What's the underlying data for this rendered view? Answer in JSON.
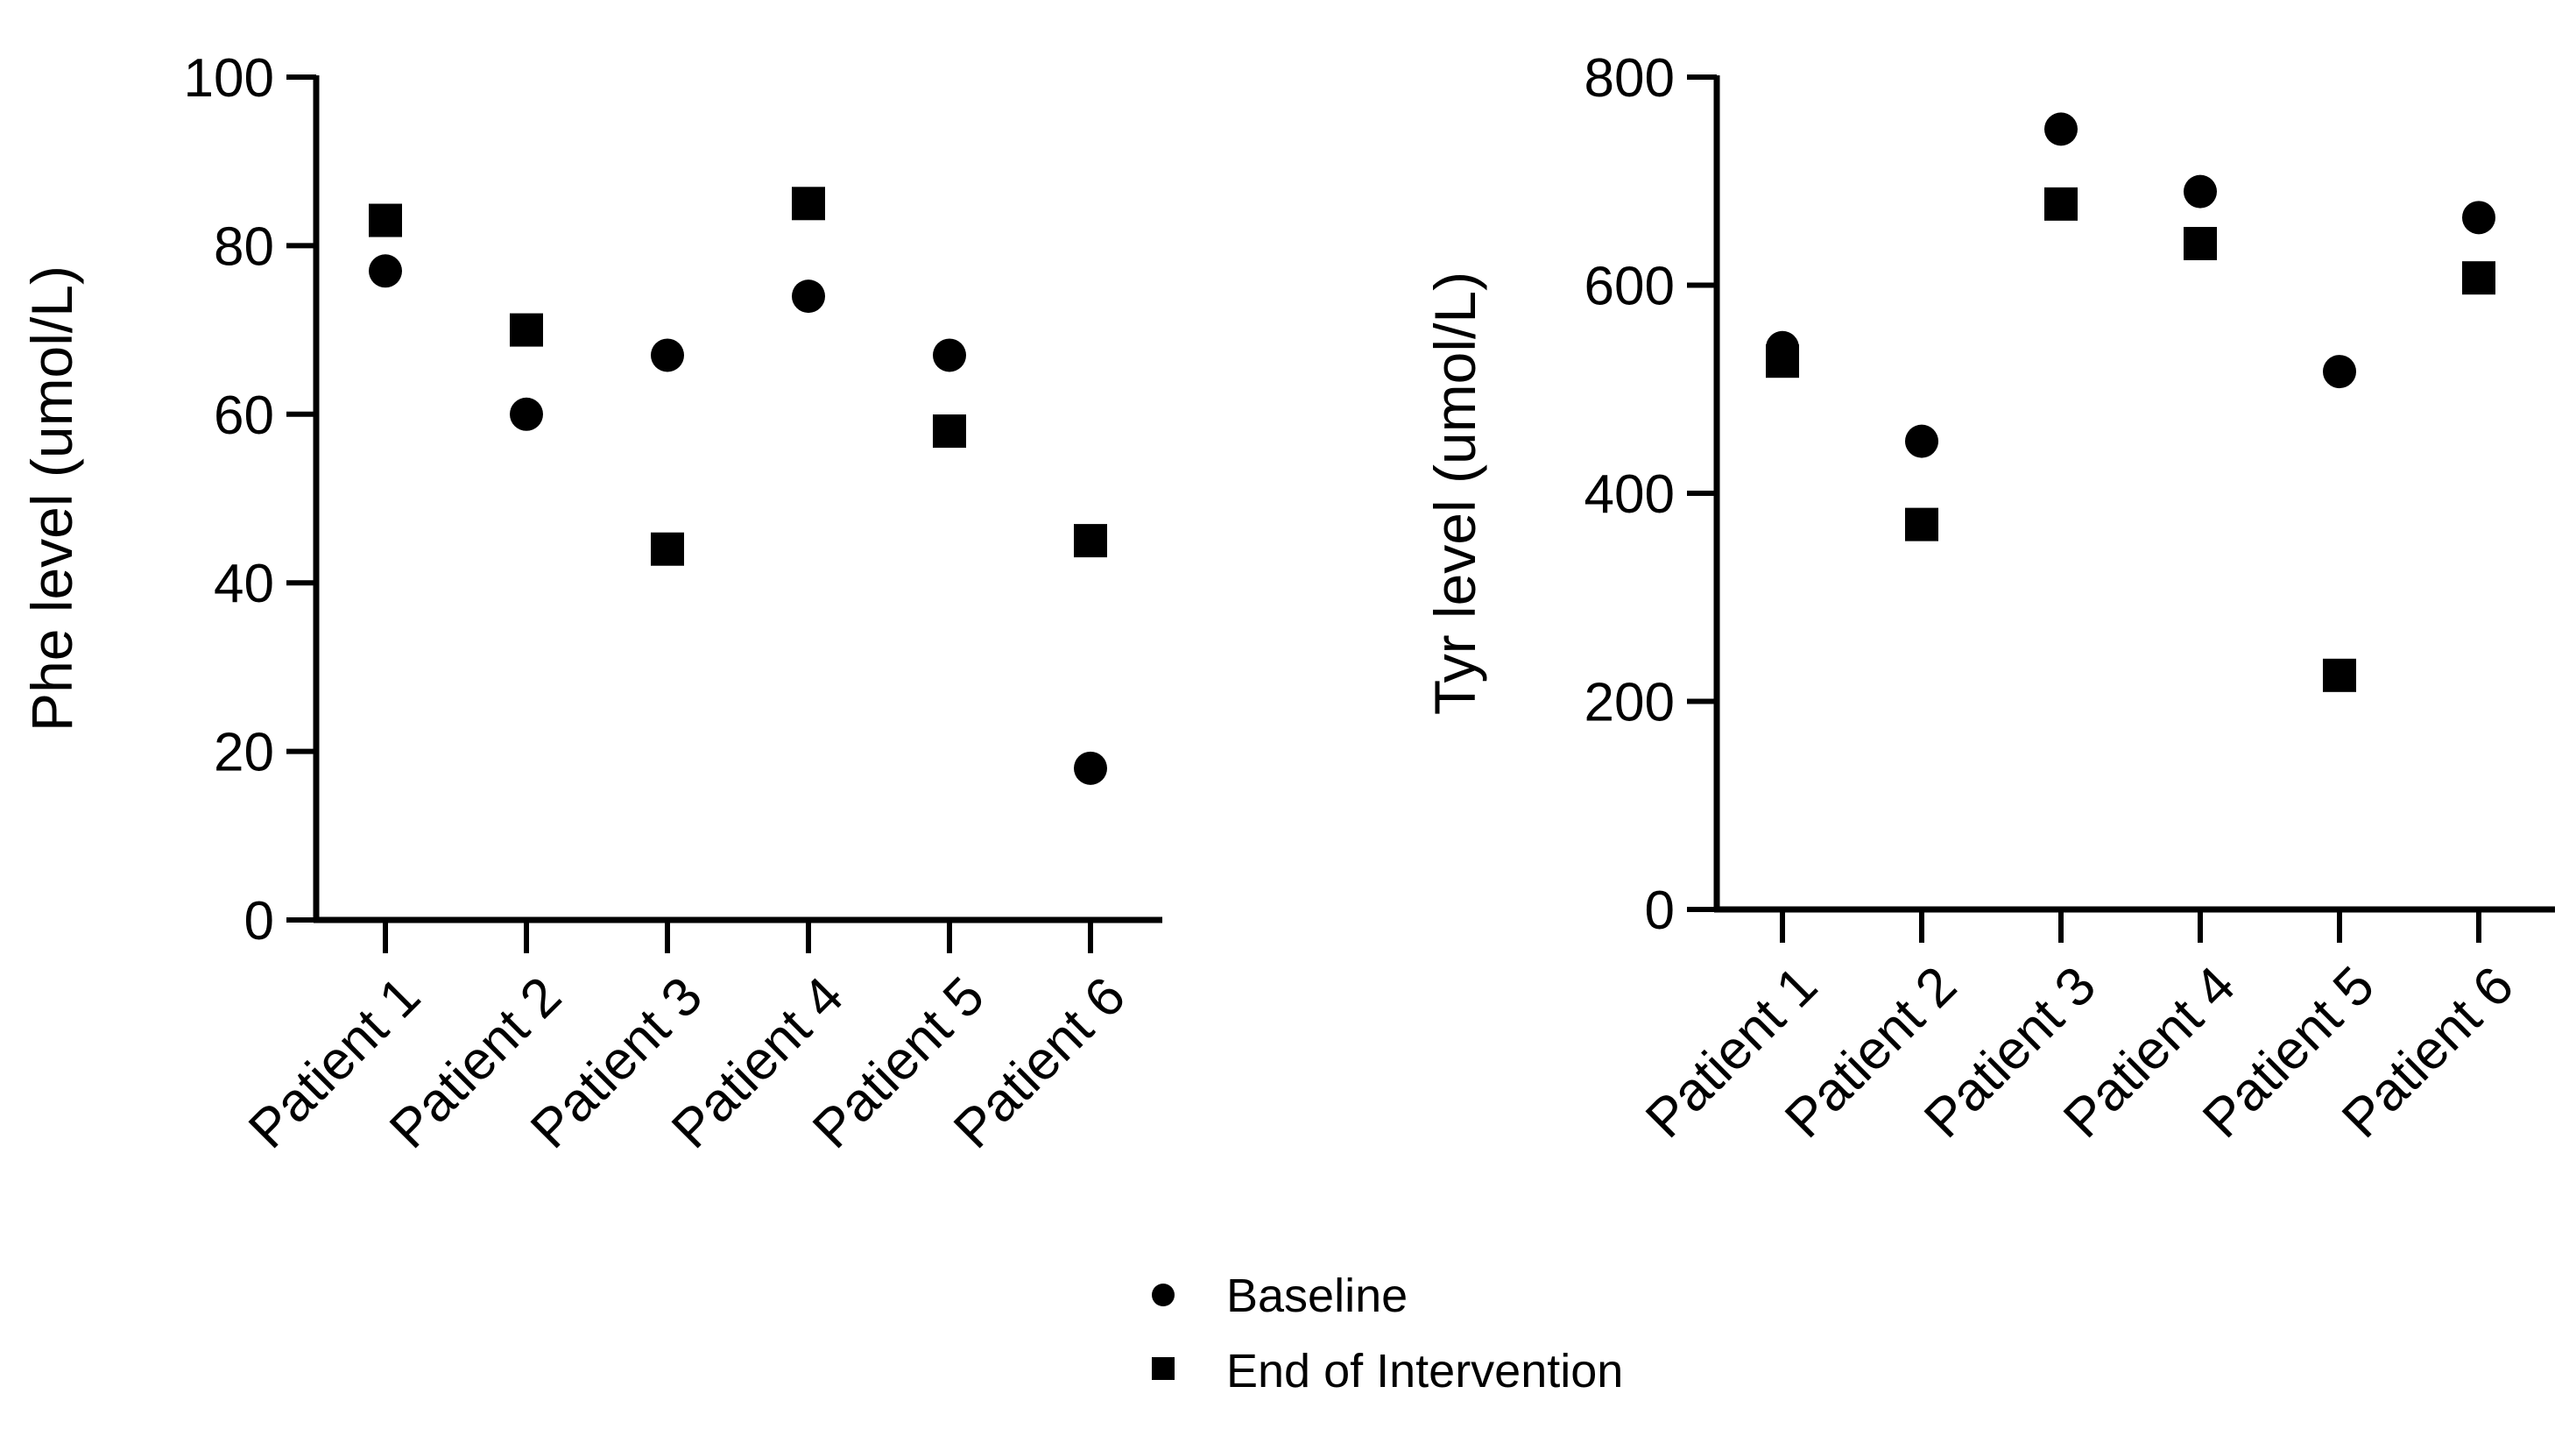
{
  "colors": {
    "ink": "#000000",
    "background": "#ffffff"
  },
  "legend": {
    "items": [
      {
        "label": "Baseline",
        "marker": "circle"
      },
      {
        "label": "End of Intervention",
        "marker": "square"
      }
    ]
  },
  "chart_data": [
    {
      "type": "scatter",
      "title": "",
      "xlabel": "",
      "ylabel": "Phe level (umol/L)",
      "categories": [
        "Patient 1",
        "Patient 2",
        "Patient 3",
        "Patient 4",
        "Patient 5",
        "Patient 6"
      ],
      "ylim": [
        0,
        100
      ],
      "yticks": [
        0,
        20,
        40,
        60,
        80,
        100
      ],
      "ytick_labels": [
        "0",
        "20",
        "40",
        "60",
        "80",
        "100"
      ],
      "grid": false,
      "series": [
        {
          "name": "Baseline",
          "marker": "circle",
          "values": [
            77,
            60,
            67,
            74,
            67,
            18
          ]
        },
        {
          "name": "End of Intervention",
          "marker": "square",
          "values": [
            83,
            70,
            44,
            85,
            58,
            45
          ]
        }
      ]
    },
    {
      "type": "scatter",
      "title": "",
      "xlabel": "",
      "ylabel": "Tyr level (umol/L)",
      "categories": [
        "Patient 1",
        "Patient 2",
        "Patient 3",
        "Patient 4",
        "Patient 5",
        "Patient 6"
      ],
      "ylim": [
        0,
        800
      ],
      "yticks": [
        0,
        200,
        400,
        600,
        800
      ],
      "ytick_labels": [
        "0",
        "200",
        "400",
        "600",
        "800"
      ],
      "grid": false,
      "series": [
        {
          "name": "Baseline",
          "marker": "circle",
          "values": [
            540,
            450,
            750,
            690,
            517,
            665
          ]
        },
        {
          "name": "End of Intervention",
          "marker": "square",
          "values": [
            527,
            370,
            678,
            640,
            225,
            607
          ]
        }
      ]
    }
  ]
}
